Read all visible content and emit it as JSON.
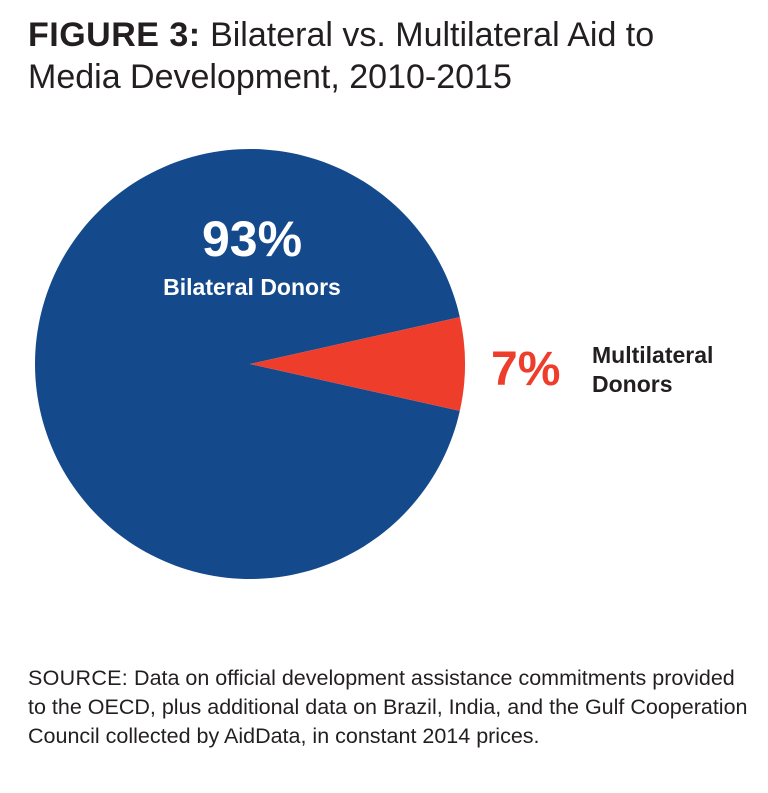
{
  "figure": {
    "title_prefix": "FIGURE 3:",
    "title": "Bilateral vs. Multilateral Aid to Media Development, 2010-2015"
  },
  "chart_data": {
    "type": "pie",
    "title": "FIGURE 3: Bilateral vs. Multilateral Aid to Media Development, 2010-2015",
    "slices": [
      {
        "label": "Bilateral Donors",
        "value": 93,
        "value_label": "93%",
        "color": "#144a8c"
      },
      {
        "label": "Multilateral Donors",
        "value": 7,
        "value_label": "7%",
        "color": "#ee3e2b"
      }
    ],
    "legend": "none"
  },
  "source": {
    "prefix": "SOURCE:",
    "text": " Data on official development assistance commitments provided to the OECD, plus additional data on Brazil, India, and the Gulf Cooperation Council collected by AidData, in constant 2014 prices."
  }
}
